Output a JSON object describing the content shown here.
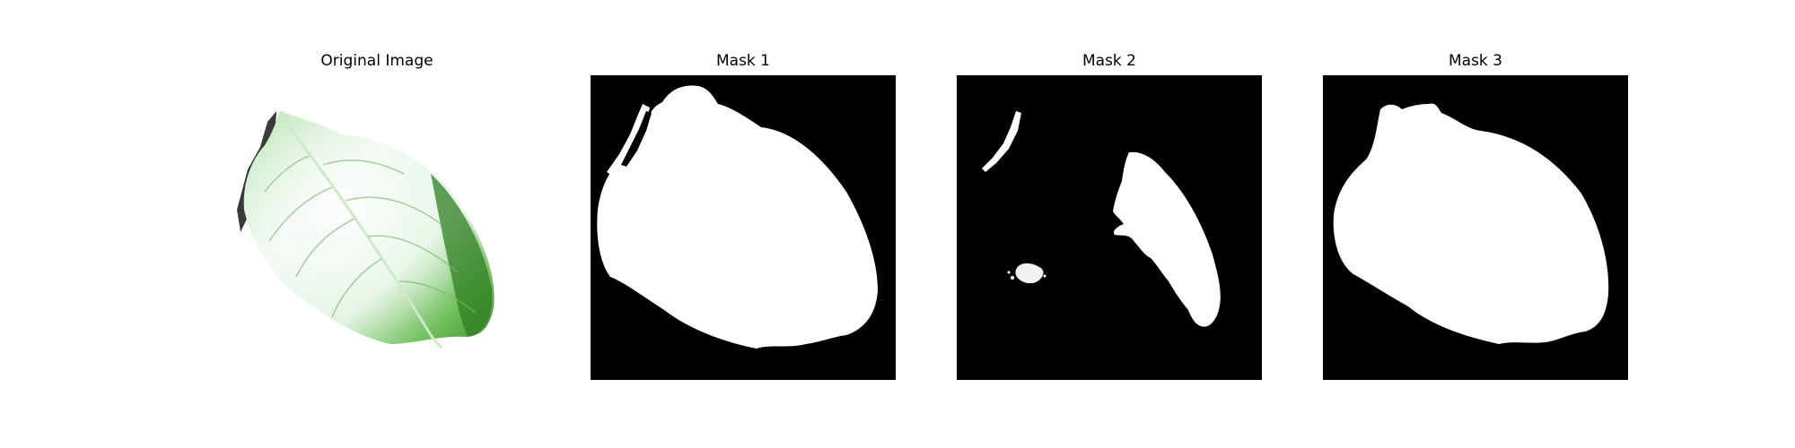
{
  "figure": {
    "panels": [
      {
        "title": "Original Image",
        "kind": "photo",
        "subject": "leaf"
      },
      {
        "title": "Mask 1",
        "kind": "mask"
      },
      {
        "title": "Mask 2",
        "kind": "mask"
      },
      {
        "title": "Mask 3",
        "kind": "mask"
      }
    ]
  },
  "colors": {
    "mask_background": "#000000",
    "mask_foreground": "#ffffff",
    "leaf_light": "#e8f4ea",
    "leaf_mid": "#8fd08a",
    "leaf_dark": "#3f8f2f",
    "shadow": "#444444"
  }
}
